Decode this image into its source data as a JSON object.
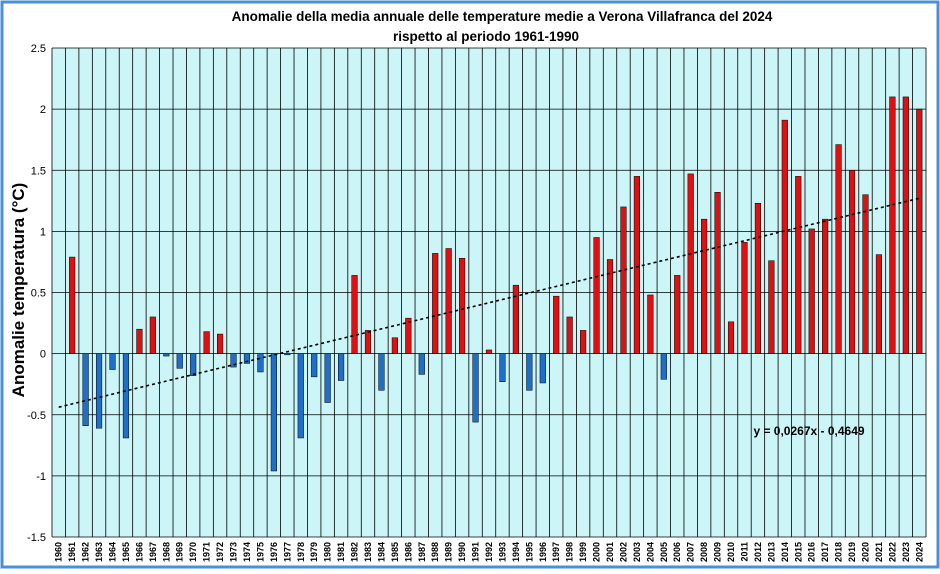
{
  "chart_data": {
    "type": "bar",
    "title": "Anomalie della media annuale delle temperature medie a  Verona Villafranca del 2024",
    "subtitle": "rispetto al periodo 1961-1990",
    "ylabel": "Anomalie temperatura (°C)",
    "xlabel": "",
    "ylim": [
      -1.5,
      2.5
    ],
    "ytick_step": 0.5,
    "y_tick_labels": [
      "2.5",
      "2",
      "1.5",
      "1",
      "0.5",
      "0",
      "-0.5",
      "-1",
      "-1.5"
    ],
    "grid": true,
    "legend": "none",
    "categories": [
      "1960",
      "1961",
      "1962",
      "1963",
      "1964",
      "1965",
      "1966",
      "1967",
      "1968",
      "1969",
      "1970",
      "1971",
      "1972",
      "1973",
      "1974",
      "1975",
      "1976",
      "1977",
      "1978",
      "1979",
      "1980",
      "1981",
      "1982",
      "1983",
      "1984",
      "1985",
      "1986",
      "1987",
      "1988",
      "1989",
      "1990",
      "1991",
      "1992",
      "1993",
      "1994",
      "1995",
      "1996",
      "1997",
      "1998",
      "1999",
      "2000",
      "2001",
      "2002",
      "2003",
      "2004",
      "2005",
      "2006",
      "2007",
      "2008",
      "2009",
      "2010",
      "2011",
      "2012",
      "2013",
      "2014",
      "2015",
      "2016",
      "2017",
      "2018",
      "2019",
      "2020",
      "2021",
      "2022",
      "2023",
      "2024"
    ],
    "values": [
      null,
      0.79,
      -0.59,
      -0.61,
      -0.13,
      -0.69,
      0.2,
      0.3,
      -0.02,
      -0.12,
      -0.18,
      0.18,
      0.16,
      -0.11,
      -0.08,
      -0.15,
      -0.96,
      -0.01,
      -0.69,
      -0.19,
      -0.4,
      -0.22,
      0.64,
      0.19,
      -0.3,
      0.13,
      0.29,
      -0.17,
      0.82,
      0.86,
      0.78,
      -0.56,
      0.03,
      -0.23,
      0.56,
      -0.3,
      -0.24,
      0.47,
      0.3,
      0.19,
      0.95,
      0.77,
      1.2,
      1.45,
      0.48,
      -0.21,
      0.64,
      1.47,
      1.1,
      1.32,
      0.26,
      0.91,
      1.23,
      0.76,
      1.91,
      1.45,
      1.02,
      1.1,
      1.71,
      1.5,
      1.3,
      0.81,
      2.1,
      2.1,
      2.0
    ],
    "trendline": {
      "equation": "y = 0,0267x - 0,4649",
      "slope": 0.0267,
      "intercept": -0.4649,
      "style": "dotted"
    },
    "colors": {
      "positive": "#dd1111",
      "negative": "#1e6fc9",
      "plot_background": "#ccf5f7",
      "grid": "#000000",
      "border": "#4a8fd9"
    }
  }
}
